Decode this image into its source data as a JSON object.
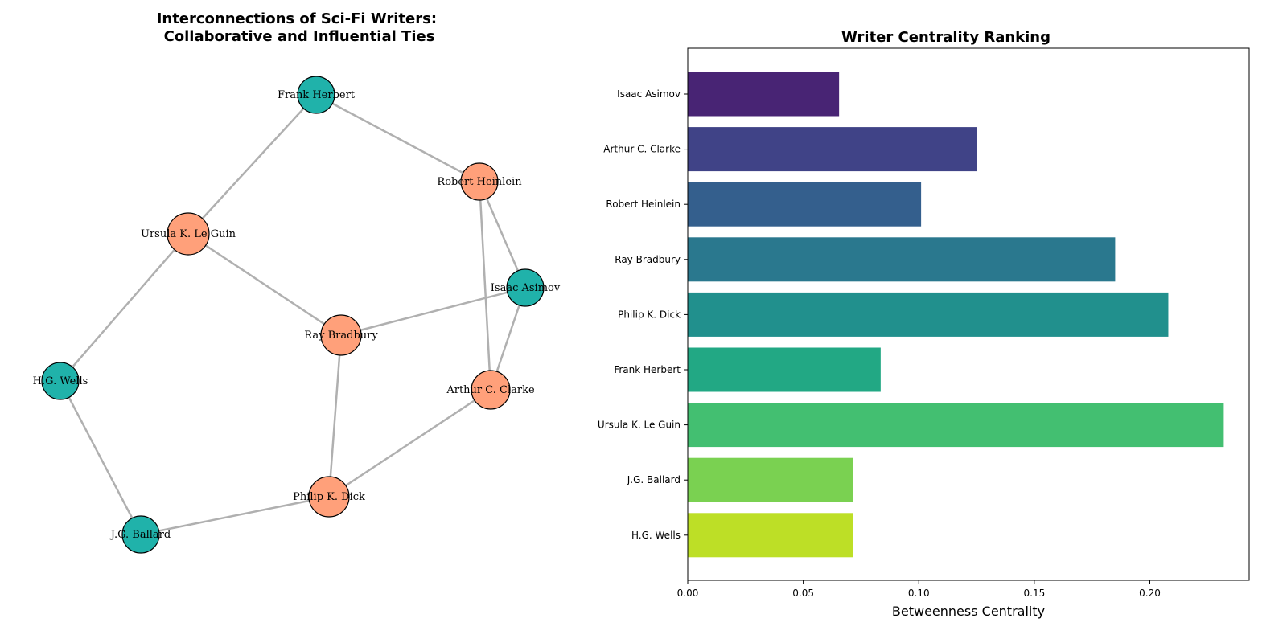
{
  "chart_data": [
    {
      "type": "network",
      "title": "Interconnections of Sci-Fi Writers:\nCollaborative and Influential Ties",
      "edge_color": "#b0b0b0",
      "group_colors": {
        "a": "#20b2aa",
        "b": "#ffa07a"
      },
      "nodes": [
        {
          "id": "frank",
          "label": "Frank Herbert",
          "group": "a"
        },
        {
          "id": "heinlein",
          "label": "Robert Heinlein",
          "group": "b"
        },
        {
          "id": "leguin",
          "label": "Ursula K. Le Guin",
          "group": "b"
        },
        {
          "id": "asimov",
          "label": "Isaac Asimov",
          "group": "a"
        },
        {
          "id": "bradbury",
          "label": "Ray Bradbury",
          "group": "b"
        },
        {
          "id": "wells",
          "label": "H.G. Wells",
          "group": "a"
        },
        {
          "id": "clarke",
          "label": "Arthur C. Clarke",
          "group": "b"
        },
        {
          "id": "dick",
          "label": "Philip K. Dick",
          "group": "b"
        },
        {
          "id": "ballard",
          "label": "J.G. Ballard",
          "group": "a"
        }
      ],
      "edges": [
        [
          "frank",
          "heinlein"
        ],
        [
          "frank",
          "leguin"
        ],
        [
          "heinlein",
          "asimov"
        ],
        [
          "heinlein",
          "clarke"
        ],
        [
          "leguin",
          "bradbury"
        ],
        [
          "leguin",
          "wells"
        ],
        [
          "asimov",
          "bradbury"
        ],
        [
          "asimov",
          "clarke"
        ],
        [
          "bradbury",
          "dick"
        ],
        [
          "clarke",
          "dick"
        ],
        [
          "wells",
          "ballard"
        ],
        [
          "ballard",
          "dick"
        ]
      ]
    },
    {
      "type": "bar",
      "orientation": "horizontal",
      "title": "Writer Centrality Ranking",
      "xlabel": "Betweenness Centrality",
      "ylabel": "",
      "xlim": [
        0,
        0.243
      ],
      "xticks": [
        "0.00",
        "0.05",
        "0.10",
        "0.15",
        "0.20"
      ],
      "categories": [
        "Isaac Asimov",
        "Arthur C. Clarke",
        "Robert Heinlein",
        "Ray Bradbury",
        "Philip K. Dick",
        "Frank Herbert",
        "Ursula K. Le Guin",
        "J.G. Ballard",
        "H.G. Wells"
      ],
      "values": [
        0.0655,
        0.125,
        0.101,
        0.185,
        0.208,
        0.0835,
        0.232,
        0.0715,
        0.0715
      ],
      "colors": [
        "#482474",
        "#404387",
        "#345f8d",
        "#2a788e",
        "#21908d",
        "#22a884",
        "#43bf71",
        "#7ad151",
        "#bddf26"
      ]
    }
  ]
}
